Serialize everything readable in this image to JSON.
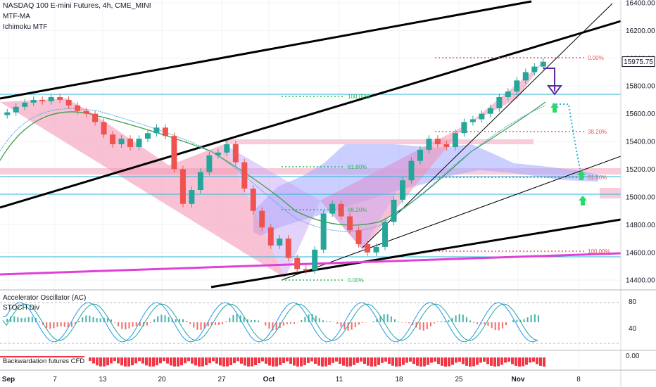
{
  "legend": {
    "title": "NASDAQ 100 E-mini Futures, 4h, CME_MINI",
    "ind1": "MTF-MA",
    "ind2": "Ichimoku MTF"
  },
  "price_tag": "15975.75",
  "colors": {
    "up": "#26a69a",
    "down": "#ef5350",
    "pattern_fill": "#f48fb1",
    "cloud_fill": "#9fa8ff",
    "trendline": "#000000",
    "magenta": "#e040d8",
    "cyan": "#26b5d6",
    "green_arrow": "#2bd96b",
    "purple_arrow": "#5b2c9f"
  },
  "fib_top": [
    "0.00%",
    "38.20%",
    "61.80%",
    "100.00%"
  ],
  "fib_bottom": [
    "100.00%",
    "61.80%",
    "88.20%",
    "0.00%"
  ],
  "panels": {
    "ac_label": "Accelerator Oscillator (AC)",
    "stoch_label": "STOCH Div",
    "stoch_ticks": [
      "80",
      "40"
    ],
    "back_label": "Backwardation futures CFD",
    "back_tick": "0.00"
  },
  "chart_data": {
    "type": "line",
    "title": "NASDAQ 100 E-mini Futures, 4h, CME_MINI",
    "xlabel": "",
    "ylabel": "",
    "x_ticks": [
      "Sep",
      "7",
      "13",
      "20",
      "27",
      "Oct",
      "11",
      "18",
      "25",
      "Nov",
      "8"
    ],
    "y_ticks": [
      "16400.00",
      "16200.00",
      "16000.00",
      "15800.00",
      "15600.00",
      "15400.00",
      "15200.00",
      "15000.00",
      "14800.00",
      "14600.00",
      "14400.00"
    ],
    "ylim": [
      14340,
      16420
    ],
    "series": [
      {
        "values": [
          15610,
          15650,
          15680,
          15700,
          15690,
          15720,
          15700,
          15660,
          15620,
          15600,
          15540,
          15450,
          15380,
          15420,
          15360,
          15420,
          15460,
          15500,
          15440,
          15200,
          14950,
          15050,
          15180,
          15300,
          15320,
          15380,
          15250,
          15060,
          14900,
          14780,
          14650,
          14700,
          14560,
          14480,
          14470,
          14620,
          14880,
          14950,
          14860,
          14760,
          14660,
          14600,
          14640,
          14820,
          14980,
          15120,
          15260,
          15340,
          15420,
          15380,
          15360,
          15460,
          15540,
          15560,
          15600,
          15640,
          15720,
          15760,
          15840,
          15900,
          15940,
          15975
        ]
      }
    ],
    "grid": true,
    "legend": "top-left"
  }
}
